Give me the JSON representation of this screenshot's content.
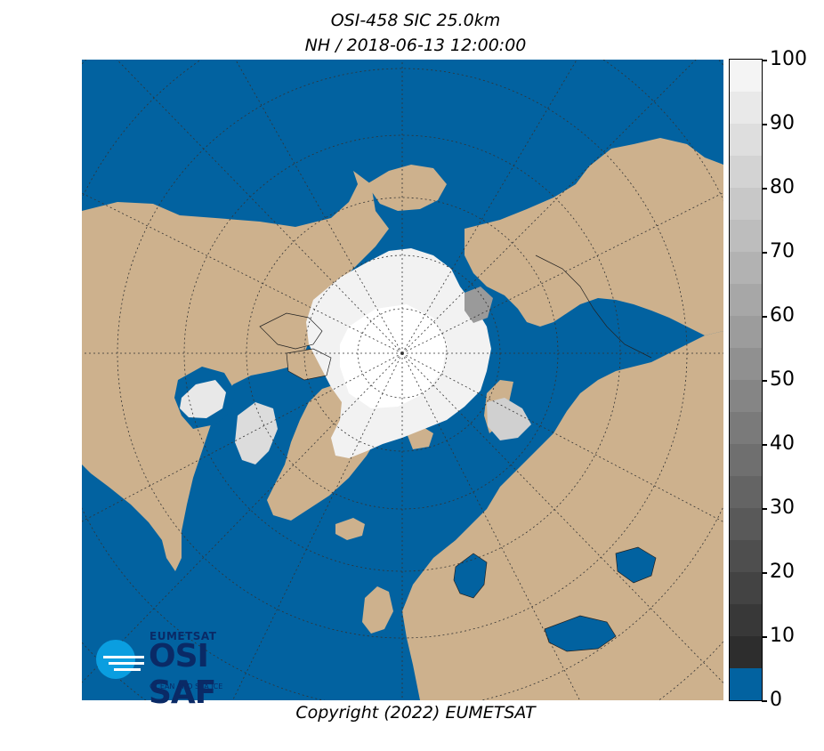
{
  "title_line1": "OSI-458 SIC 25.0km",
  "title_line2": "NH / 2018-06-13 12:00:00",
  "copyright": "Copyright (2022)  EUMETSAT",
  "colorbar": {
    "ticks": [
      "100",
      "90",
      "80",
      "70",
      "60",
      "50",
      "40",
      "30",
      "20",
      "10",
      "0"
    ],
    "min": 0,
    "max": 100,
    "ocean_color": "#0262a0",
    "land_color": "#cdb18d"
  },
  "logo": {
    "org": "EUMETSAT",
    "name": "OSI SAF",
    "subtitle": "OCEAN AND SEA ICE",
    "color": "#0a2a66",
    "accent": "#0a9ee0"
  },
  "map": {
    "projection": "north-polar-stereographic",
    "graticule": "on",
    "icons": [
      "ice-cap",
      "land-masses",
      "ocean"
    ]
  }
}
